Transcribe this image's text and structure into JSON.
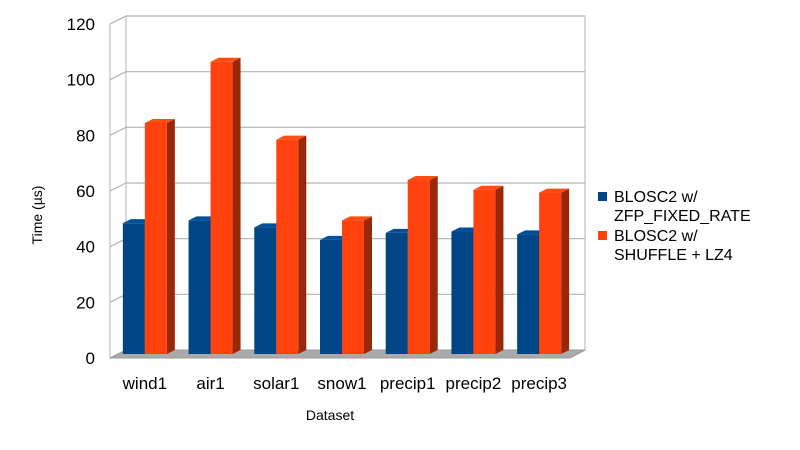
{
  "chart_data": {
    "type": "bar",
    "title": "",
    "xlabel": "Dataset",
    "ylabel": "Time (µs)",
    "ylim": [
      0,
      120
    ],
    "yticks": [
      0,
      20,
      40,
      60,
      80,
      100,
      120
    ],
    "grid": true,
    "legend_position": "right",
    "categories": [
      "wind1",
      "air1",
      "solar1",
      "snow1",
      "precip1",
      "precip2",
      "precip3"
    ],
    "series": [
      {
        "name": "BLOSC2 w/ ZFP_FIXED_RATE",
        "legend_lines": [
          "BLOSC2 w/",
          "ZFP_FIXED_RATE"
        ],
        "color": "#004586",
        "values": [
          47,
          48,
          45.5,
          41,
          43.5,
          44,
          43
        ]
      },
      {
        "name": "BLOSC2 w/ SHUFFLE + LZ4",
        "legend_lines": [
          "BLOSC2 w/",
          "SHUFFLE + LZ4"
        ],
        "color": "#ff420e",
        "values": [
          83,
          105,
          77,
          48,
          62.5,
          59,
          58
        ]
      }
    ]
  }
}
